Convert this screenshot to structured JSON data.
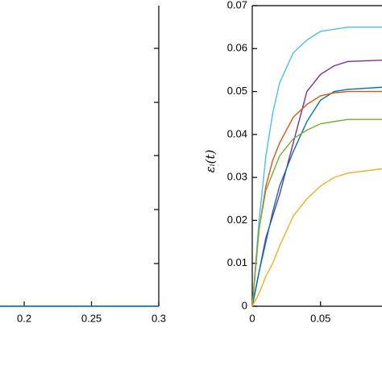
{
  "chart_data": [
    {
      "type": "line",
      "x": [
        0.182,
        0.3
      ],
      "series": [
        {
          "color": "#0072bd",
          "values": [
            0,
            0
          ]
        }
      ],
      "xlim": [
        0.182,
        0.3
      ],
      "xticks": [
        0.2,
        0.25,
        0.3
      ],
      "ylim": [
        0,
        1
      ]
    },
    {
      "type": "line",
      "ylabel": "εᵢ(t)",
      "x": [
        0,
        0.005,
        0.01,
        0.015,
        0.02,
        0.03,
        0.04,
        0.05,
        0.06,
        0.07,
        0.095
      ],
      "series": [
        {
          "color": "#4dbeee",
          "values": [
            0,
            0.02,
            0.035,
            0.045,
            0.052,
            0.059,
            0.062,
            0.064,
            0.0645,
            0.065,
            0.065
          ]
        },
        {
          "color": "#7e2f8e",
          "values": [
            0,
            0.008,
            0.016,
            0.021,
            0.026,
            0.038,
            0.05,
            0.054,
            0.056,
            0.057,
            0.0573
          ]
        },
        {
          "color": "#0072bd",
          "values": [
            0,
            0.008,
            0.015,
            0.022,
            0.028,
            0.036,
            0.043,
            0.048,
            0.05,
            0.0505,
            0.051
          ]
        },
        {
          "color": "#d95319",
          "values": [
            0,
            0.018,
            0.028,
            0.034,
            0.038,
            0.044,
            0.047,
            0.049,
            0.0497,
            0.05,
            0.05
          ]
        },
        {
          "color": "#77ac30",
          "values": [
            0,
            0.018,
            0.027,
            0.031,
            0.035,
            0.039,
            0.041,
            0.0425,
            0.043,
            0.0435,
            0.0435
          ]
        },
        {
          "color": "#edb120",
          "values": [
            0,
            0.003,
            0.007,
            0.01,
            0.014,
            0.021,
            0.025,
            0.028,
            0.03,
            0.031,
            0.032
          ]
        }
      ],
      "xlim": [
        0,
        0.095
      ],
      "xticks": [
        0,
        0.05
      ],
      "ylim": [
        0,
        0.07
      ],
      "yticks": [
        0,
        0.01,
        0.02,
        0.03,
        0.04,
        0.05,
        0.06,
        0.07
      ]
    }
  ]
}
